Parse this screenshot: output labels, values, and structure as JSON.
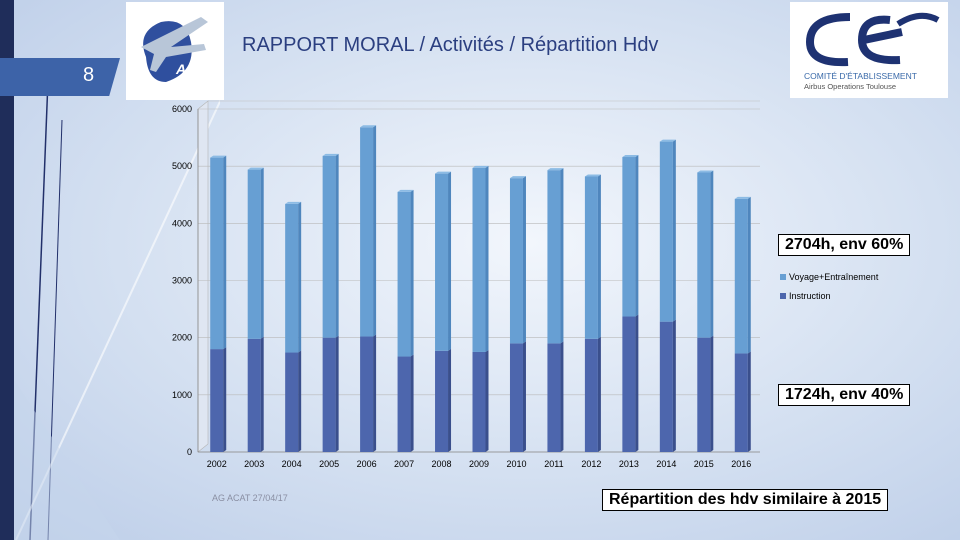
{
  "page_number": "8",
  "title": "RAPPORT MORAL / Activités / Répartition Hdv",
  "footer": "AG ACAT 27/04/17",
  "logos": {
    "acat_text": "ACAT",
    "ce_text": "COMITÉ D'ÉTABLISSEMENT",
    "ce_subtext": "Airbus Operations Toulouse"
  },
  "callouts": {
    "upper": "2704h, env 60%",
    "lower": "1724h, env 40%",
    "conclusion": "Répartition des hdv similaire à 2015"
  },
  "colors": {
    "voyage": "#679fd3",
    "instruction": "#4d66ad",
    "title": "#2b3f80",
    "tab": "#3d63a8"
  },
  "chart_data": {
    "type": "bar",
    "stacked": true,
    "categories": [
      "2002",
      "2003",
      "2004",
      "2005",
      "2006",
      "2007",
      "2008",
      "2009",
      "2010",
      "2011",
      "2012",
      "2013",
      "2014",
      "2015",
      "2016"
    ],
    "series": [
      {
        "name": "Instruction",
        "values": [
          1800,
          1980,
          1740,
          2000,
          2020,
          1670,
          1770,
          1750,
          1900,
          1900,
          1980,
          2370,
          2280,
          2000,
          1724
        ]
      },
      {
        "name": "Voyage+Entraînement",
        "values": [
          3350,
          2960,
          2600,
          3180,
          3660,
          2880,
          3100,
          3220,
          2890,
          3030,
          2840,
          2790,
          3150,
          2890,
          2704
        ]
      }
    ],
    "y_ticks": [
      "0",
      "1000",
      "2000",
      "3000",
      "4000",
      "5000",
      "6000"
    ],
    "ylim": [
      0,
      6000
    ],
    "legend": [
      "Voyage+Entraînement",
      "Instruction"
    ],
    "legend_position": "right"
  }
}
